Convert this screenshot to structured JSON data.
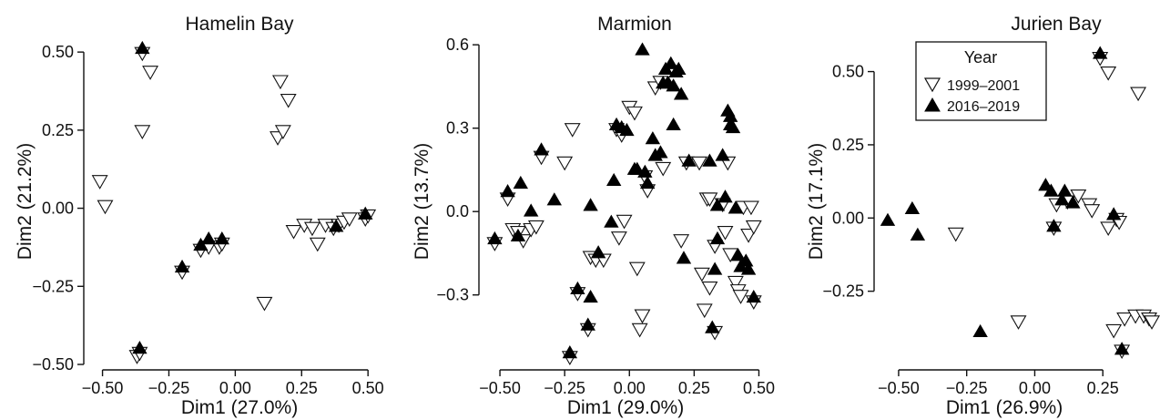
{
  "legend": {
    "title": "Year",
    "entries": [
      {
        "label": "1999–2001",
        "marker": "open-down-triangle"
      },
      {
        "label": "2016–2019",
        "marker": "filled-up-triangle"
      }
    ]
  },
  "colors": {
    "marker_fill": "#000000",
    "marker_open": "#ffffff",
    "axis": "#111111"
  },
  "chart_data": [
    {
      "type": "scatter",
      "title": "Hamelin Bay",
      "xlabel": "Dim1 (27.0%)",
      "ylabel": "Dim2 (21.2%)",
      "xlim": [
        -0.55,
        0.52
      ],
      "ylim": [
        -0.5,
        0.55
      ],
      "xticks": [
        -0.5,
        -0.25,
        0,
        0.25,
        0.5
      ],
      "xtick_labels": [
        "−0.50",
        "−0.25",
        "0.00",
        "0.25",
        "0.50"
      ],
      "yticks": [
        -0.5,
        -0.25,
        0,
        0.25,
        0.5
      ],
      "ytick_labels": [
        "−0.50",
        "−0.25",
        "0.00",
        "0.25",
        "0.50"
      ],
      "grid": false,
      "series": [
        {
          "name": "1999–2001",
          "points": [
            [
              -0.51,
              0.09
            ],
            [
              -0.49,
              0.01
            ],
            [
              -0.35,
              0.5
            ],
            [
              -0.32,
              0.44
            ],
            [
              -0.35,
              0.25
            ],
            [
              -0.37,
              -0.47
            ],
            [
              -0.36,
              -0.46
            ],
            [
              -0.2,
              -0.2
            ],
            [
              -0.13,
              -0.13
            ],
            [
              -0.1,
              -0.12
            ],
            [
              -0.06,
              -0.12
            ],
            [
              -0.05,
              -0.11
            ],
            [
              0.11,
              -0.3
            ],
            [
              0.16,
              0.23
            ],
            [
              0.18,
              0.25
            ],
            [
              0.17,
              0.41
            ],
            [
              0.2,
              0.35
            ],
            [
              0.22,
              -0.07
            ],
            [
              0.26,
              -0.05
            ],
            [
              0.29,
              -0.06
            ],
            [
              0.31,
              -0.11
            ],
            [
              0.34,
              -0.05
            ],
            [
              0.37,
              -0.06
            ],
            [
              0.39,
              -0.05
            ],
            [
              0.41,
              -0.04
            ],
            [
              0.43,
              -0.03
            ],
            [
              0.49,
              -0.03
            ],
            [
              0.5,
              -0.02
            ]
          ]
        },
        {
          "name": "2016–2019",
          "points": [
            [
              -0.35,
              0.51
            ],
            [
              -0.36,
              -0.45
            ],
            [
              -0.2,
              -0.19
            ],
            [
              -0.13,
              -0.12
            ],
            [
              -0.1,
              -0.1
            ],
            [
              -0.05,
              -0.1
            ],
            [
              0.38,
              -0.06
            ],
            [
              0.49,
              -0.02
            ]
          ]
        }
      ]
    },
    {
      "type": "scatter",
      "title": "Marmion",
      "xlabel": "Dim1 (29.0%)",
      "ylabel": "Dim2 (13.7%)",
      "xlim": [
        -0.56,
        0.53
      ],
      "ylim": [
        -0.55,
        0.63
      ],
      "xticks": [
        -0.5,
        -0.25,
        0,
        0.25,
        0.5
      ],
      "xtick_labels": [
        "−0.50",
        "−0.25",
        "0.00",
        "0.25",
        "0.50"
      ],
      "yticks": [
        -0.3,
        0,
        0.3,
        0.6
      ],
      "ytick_labels": [
        "−0.3",
        "0.0",
        "0.3",
        "0.6"
      ],
      "grid": false,
      "series": [
        {
          "name": "1999–2001",
          "points": [
            [
              -0.52,
              -0.11
            ],
            [
              -0.47,
              0.05
            ],
            [
              -0.45,
              -0.06
            ],
            [
              -0.43,
              -0.07
            ],
            [
              -0.41,
              -0.1
            ],
            [
              -0.38,
              -0.06
            ],
            [
              -0.36,
              -0.05
            ],
            [
              -0.34,
              0.2
            ],
            [
              -0.25,
              0.18
            ],
            [
              -0.22,
              0.3
            ],
            [
              -0.23,
              -0.52
            ],
            [
              -0.2,
              -0.29
            ],
            [
              -0.16,
              -0.42
            ],
            [
              -0.15,
              -0.16
            ],
            [
              -0.13,
              -0.17
            ],
            [
              -0.1,
              -0.17
            ],
            [
              -0.05,
              0.3
            ],
            [
              -0.03,
              0.28
            ],
            [
              -0.02,
              -0.03
            ],
            [
              -0.04,
              -0.09
            ],
            [
              0.0,
              0.38
            ],
            [
              0.02,
              0.36
            ],
            [
              0.03,
              -0.2
            ],
            [
              0.05,
              -0.37
            ],
            [
              0.04,
              -0.42
            ],
            [
              0.06,
              0.13
            ],
            [
              0.07,
              0.08
            ],
            [
              0.1,
              0.45
            ],
            [
              0.12,
              0.47
            ],
            [
              0.13,
              0.16
            ],
            [
              0.2,
              -0.1
            ],
            [
              0.22,
              0.18
            ],
            [
              0.27,
              0.18
            ],
            [
              0.28,
              -0.22
            ],
            [
              0.29,
              -0.35
            ],
            [
              0.3,
              0.05
            ],
            [
              0.31,
              0.05
            ],
            [
              0.31,
              -0.27
            ],
            [
              0.33,
              -0.43
            ],
            [
              0.33,
              -0.12
            ],
            [
              0.36,
              0.03
            ],
            [
              0.37,
              -0.07
            ],
            [
              0.38,
              0.18
            ],
            [
              0.39,
              -0.15
            ],
            [
              0.41,
              -0.25
            ],
            [
              0.42,
              -0.28
            ],
            [
              0.43,
              -0.3
            ],
            [
              0.44,
              0.02
            ],
            [
              0.46,
              -0.08
            ],
            [
              0.47,
              0.02
            ],
            [
              0.48,
              -0.05
            ],
            [
              0.48,
              -0.32
            ]
          ]
        },
        {
          "name": "2016–2019",
          "points": [
            [
              -0.52,
              -0.1
            ],
            [
              -0.47,
              0.07
            ],
            [
              -0.43,
              -0.09
            ],
            [
              -0.42,
              0.1
            ],
            [
              -0.38,
              0.0
            ],
            [
              -0.34,
              0.22
            ],
            [
              -0.29,
              0.04
            ],
            [
              -0.23,
              -0.51
            ],
            [
              -0.2,
              -0.28
            ],
            [
              -0.16,
              -0.41
            ],
            [
              -0.15,
              0.02
            ],
            [
              -0.15,
              -0.31
            ],
            [
              -0.12,
              -0.15
            ],
            [
              -0.07,
              -0.04
            ],
            [
              -0.06,
              0.11
            ],
            [
              -0.05,
              0.31
            ],
            [
              -0.03,
              0.3
            ],
            [
              -0.01,
              0.29
            ],
            [
              0.02,
              0.15
            ],
            [
              0.03,
              0.15
            ],
            [
              0.05,
              0.58
            ],
            [
              0.06,
              0.14
            ],
            [
              0.07,
              0.1
            ],
            [
              0.09,
              0.26
            ],
            [
              0.1,
              0.2
            ],
            [
              0.12,
              0.21
            ],
            [
              0.13,
              0.46
            ],
            [
              0.14,
              0.51
            ],
            [
              0.15,
              0.46
            ],
            [
              0.16,
              0.53
            ],
            [
              0.17,
              0.45
            ],
            [
              0.18,
              0.5
            ],
            [
              0.19,
              0.51
            ],
            [
              0.2,
              0.42
            ],
            [
              0.17,
              0.31
            ],
            [
              0.21,
              -0.17
            ],
            [
              0.23,
              0.18
            ],
            [
              0.31,
              0.18
            ],
            [
              0.33,
              -0.21
            ],
            [
              0.32,
              -0.42
            ],
            [
              0.34,
              0.02
            ],
            [
              0.34,
              -0.1
            ],
            [
              0.36,
              0.2
            ],
            [
              0.37,
              0.05
            ],
            [
              0.38,
              0.36
            ],
            [
              0.39,
              0.31
            ],
            [
              0.39,
              0.34
            ],
            [
              0.4,
              0.3
            ],
            [
              0.41,
              0.01
            ],
            [
              0.42,
              -0.16
            ],
            [
              0.43,
              -0.2
            ],
            [
              0.45,
              -0.18
            ],
            [
              0.46,
              -0.21
            ],
            [
              0.48,
              -0.31
            ]
          ]
        }
      ]
    },
    {
      "type": "scatter",
      "title": "Jurien Bay",
      "xlabel": "Dim1 (26.9%)",
      "ylabel": "Dim2 (17.1%)",
      "xlim": [
        -0.57,
        0.46
      ],
      "ylim": [
        -0.5,
        0.62
      ],
      "xticks": [
        -0.5,
        -0.25,
        0,
        0.25
      ],
      "xtick_labels": [
        "−0.50",
        "−0.25",
        "0.00",
        "0.25"
      ],
      "yticks": [
        -0.25,
        0,
        0.25,
        0.5
      ],
      "ytick_labels": [
        "−0.25",
        "0.00",
        "0.25",
        "0.50"
      ],
      "grid": false,
      "series": [
        {
          "name": "1999–2001",
          "points": [
            [
              -0.29,
              -0.05
            ],
            [
              -0.06,
              -0.35
            ],
            [
              0.07,
              -0.03
            ],
            [
              0.08,
              0.05
            ],
            [
              0.12,
              0.06
            ],
            [
              0.16,
              0.08
            ],
            [
              0.2,
              0.05
            ],
            [
              0.21,
              0.03
            ],
            [
              0.27,
              -0.03
            ],
            [
              0.3,
              0.0
            ],
            [
              0.31,
              -0.01
            ],
            [
              0.24,
              0.55
            ],
            [
              0.27,
              0.5
            ],
            [
              0.38,
              0.43
            ],
            [
              0.29,
              -0.38
            ],
            [
              0.33,
              -0.34
            ],
            [
              0.37,
              -0.33
            ],
            [
              0.4,
              -0.33
            ],
            [
              0.42,
              -0.34
            ],
            [
              0.43,
              -0.35
            ],
            [
              0.32,
              -0.45
            ]
          ]
        },
        {
          "name": "2016–2019",
          "points": [
            [
              -0.54,
              -0.01
            ],
            [
              -0.45,
              0.03
            ],
            [
              -0.43,
              -0.06
            ],
            [
              -0.2,
              -0.39
            ],
            [
              0.04,
              0.11
            ],
            [
              0.06,
              0.09
            ],
            [
              0.07,
              -0.03
            ],
            [
              0.11,
              0.09
            ],
            [
              0.1,
              0.06
            ],
            [
              0.14,
              0.05
            ],
            [
              0.29,
              0.01
            ],
            [
              0.24,
              0.56
            ],
            [
              0.32,
              -0.45
            ]
          ]
        }
      ]
    }
  ]
}
